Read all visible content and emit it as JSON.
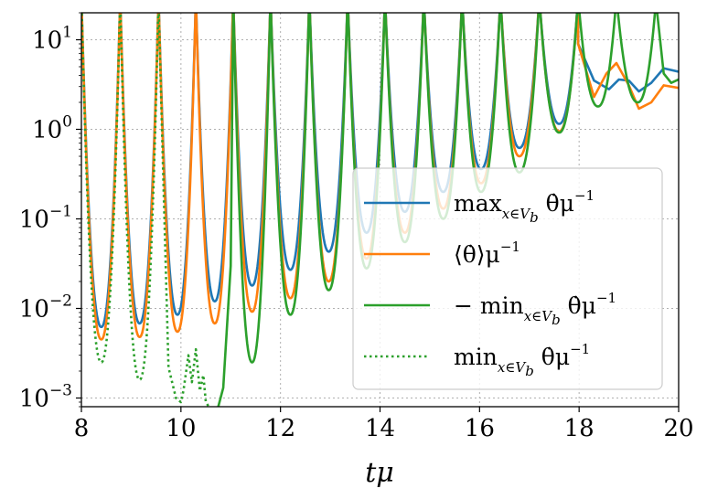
{
  "chart_data": {
    "type": "line",
    "xlabel": "tμ",
    "xlim": [
      8,
      20
    ],
    "ylim": [
      0.0008,
      20
    ],
    "yscale": "log",
    "grid": true,
    "legend_position": "center-right",
    "x_ticks": [
      {
        "value": 8,
        "label": "8"
      },
      {
        "value": 10,
        "label": "10"
      },
      {
        "value": 12,
        "label": "12"
      },
      {
        "value": 14,
        "label": "14"
      },
      {
        "value": 16,
        "label": "16"
      },
      {
        "value": 18,
        "label": "18"
      },
      {
        "value": 20,
        "label": "20"
      }
    ],
    "y_ticks": [
      {
        "value": 0.001,
        "base": "10",
        "exp": "−3"
      },
      {
        "value": 0.01,
        "base": "10",
        "exp": "−2"
      },
      {
        "value": 0.1,
        "base": "10",
        "exp": "−1"
      },
      {
        "value": 1,
        "base": "10",
        "exp": "0"
      },
      {
        "value": 10,
        "base": "10",
        "exp": "1"
      }
    ],
    "series": [
      {
        "name": "max_{x∈V_b} θ̇ μ^{−1}",
        "legend": {
          "pre": "max",
          "sub": "x∈V",
          "sub2": "b",
          "post": " θ̇μ",
          "sup": "−1"
        },
        "color": "#1f77b4",
        "style": "solid",
        "peaks": [
          8.0,
          8.78,
          9.55,
          10.3,
          11.05,
          11.8,
          12.58,
          13.35,
          14.1,
          14.88,
          15.65,
          16.42,
          17.2,
          17.98
        ],
        "troughs": [
          {
            "x": 8.4,
            "y": 0.0062
          },
          {
            "x": 9.17,
            "y": 0.0068
          },
          {
            "x": 9.93,
            "y": 0.0085
          },
          {
            "x": 10.68,
            "y": 0.012
          },
          {
            "x": 11.43,
            "y": 0.018
          },
          {
            "x": 12.2,
            "y": 0.027
          },
          {
            "x": 12.97,
            "y": 0.043
          },
          {
            "x": 13.73,
            "y": 0.07
          },
          {
            "x": 14.5,
            "y": 0.12
          },
          {
            "x": 15.27,
            "y": 0.2
          },
          {
            "x": 16.03,
            "y": 0.36
          },
          {
            "x": 16.8,
            "y": 0.62
          },
          {
            "x": 17.6,
            "y": 1.15
          }
        ],
        "tail": [
          [
            17.98,
            9.0
          ],
          [
            18.3,
            3.5
          ],
          [
            18.6,
            2.8
          ],
          [
            18.8,
            3.6
          ],
          [
            19.0,
            3.5
          ],
          [
            19.2,
            2.65
          ],
          [
            19.45,
            3.3
          ],
          [
            19.7,
            4.8
          ],
          [
            20.0,
            4.4
          ]
        ]
      },
      {
        "name": "⟨θ̇⟩ μ^{−1}",
        "legend": {
          "pre": "⟨θ̇⟩μ",
          "sup": "−1"
        },
        "color": "#ff7f0e",
        "style": "solid",
        "peaks": [
          8.0,
          8.78,
          9.55,
          10.3,
          11.05,
          11.8,
          12.58,
          13.35,
          14.1,
          14.88,
          15.65,
          16.42,
          17.2,
          17.98
        ],
        "troughs": [
          {
            "x": 8.4,
            "y": 0.0045
          },
          {
            "x": 9.17,
            "y": 0.0048
          },
          {
            "x": 9.93,
            "y": 0.0055
          },
          {
            "x": 10.68,
            "y": 0.0068
          },
          {
            "x": 11.43,
            "y": 0.0092
          },
          {
            "x": 12.2,
            "y": 0.013
          },
          {
            "x": 12.97,
            "y": 0.02
          },
          {
            "x": 13.73,
            "y": 0.036
          },
          {
            "x": 14.5,
            "y": 0.07
          },
          {
            "x": 15.27,
            "y": 0.13
          },
          {
            "x": 16.03,
            "y": 0.25
          },
          {
            "x": 16.8,
            "y": 0.5
          },
          {
            "x": 17.6,
            "y": 0.95
          }
        ],
        "tail": [
          [
            17.98,
            9.0
          ],
          [
            18.3,
            2.3
          ],
          [
            18.55,
            4.2
          ],
          [
            18.75,
            5.5
          ],
          [
            19.0,
            3.1
          ],
          [
            19.2,
            1.7
          ],
          [
            19.45,
            2.0
          ],
          [
            19.7,
            3.1
          ],
          [
            20.0,
            2.9
          ]
        ]
      },
      {
        "name": "−min_{x∈V_b} θ̇ μ^{−1}",
        "legend": {
          "pre": "− min",
          "sub": "x∈V",
          "sub2": "b",
          "post": " θ̇μ",
          "sup": "−1"
        },
        "color": "#2ca02c",
        "style": "solid",
        "peaks": [
          8.0,
          8.78,
          9.55,
          10.3,
          11.05,
          11.8,
          12.58,
          13.35,
          14.1,
          14.88,
          15.65,
          16.42,
          17.2,
          17.98,
          18.75,
          19.55
        ],
        "troughs": [
          {
            "x": 11.43,
            "y": 0.0025
          },
          {
            "x": 12.2,
            "y": 0.0085
          },
          {
            "x": 12.97,
            "y": 0.016
          },
          {
            "x": 13.73,
            "y": 0.028
          },
          {
            "x": 14.5,
            "y": 0.055
          },
          {
            "x": 15.27,
            "y": 0.1
          },
          {
            "x": 16.03,
            "y": 0.2
          },
          {
            "x": 16.8,
            "y": 0.33
          },
          {
            "x": 17.6,
            "y": 0.92
          },
          {
            "x": 18.38,
            "y": 1.8
          },
          {
            "x": 19.18,
            "y": 2.0
          }
        ],
        "head": [
          [
            10.75,
            0.0008
          ],
          [
            10.85,
            0.0013
          ],
          [
            11.0,
            0.03
          ],
          [
            11.05,
            25
          ]
        ],
        "tail": [
          [
            19.55,
            25
          ],
          [
            19.7,
            4.2
          ],
          [
            19.85,
            3.3
          ],
          [
            20.0,
            3.6
          ]
        ]
      },
      {
        "name": "min_{x∈V_b} θ̇ μ^{−1}",
        "legend": {
          "pre": "min",
          "sub": "x∈V",
          "sub2": "b",
          "post": " θ̇μ",
          "sup": "−1"
        },
        "color": "#2ca02c",
        "style": "dotted",
        "peaks": [
          8.0,
          8.78,
          9.55
        ],
        "troughs": [
          {
            "x": 8.4,
            "y": 0.0025
          },
          {
            "x": 9.17,
            "y": 0.0016
          }
        ],
        "tail": [
          [
            9.55,
            25
          ],
          [
            9.75,
            0.0022
          ],
          [
            9.9,
            0.001
          ],
          [
            10.0,
            0.0009
          ],
          [
            10.05,
            0.0012
          ],
          [
            10.15,
            0.003
          ],
          [
            10.22,
            0.0015
          ],
          [
            10.3,
            0.0035
          ],
          [
            10.38,
            0.0012
          ],
          [
            10.45,
            0.0018
          ],
          [
            10.5,
            0.0009
          ],
          [
            10.56,
            0.0008
          ]
        ]
      }
    ]
  }
}
